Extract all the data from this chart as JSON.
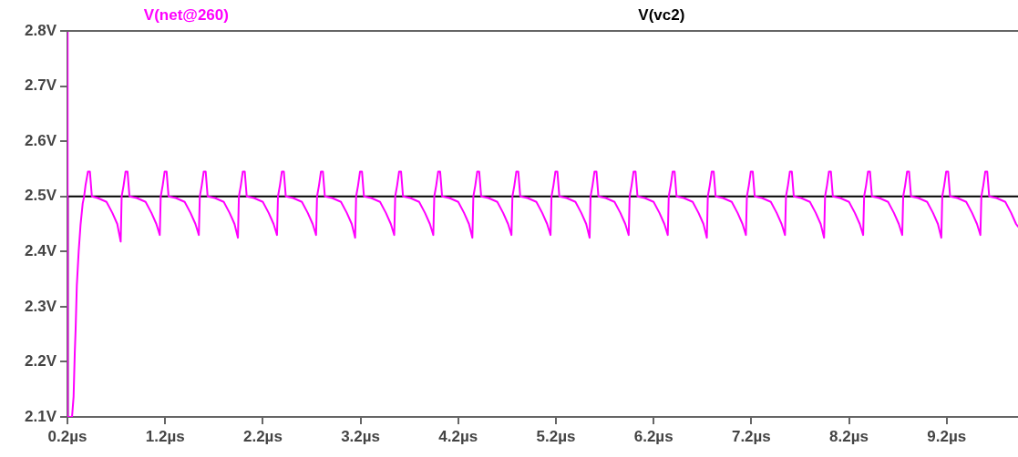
{
  "chart_data": {
    "type": "line",
    "legend": "top",
    "grid": false,
    "marker": "none",
    "line_style": "solid",
    "xlim": [
      0.2,
      9.93
    ],
    "ylim": [
      2.1,
      2.8
    ],
    "xticks": [
      {
        "value": 0.2,
        "label": "0.2µs"
      },
      {
        "value": 1.2,
        "label": "1.2µs"
      },
      {
        "value": 2.2,
        "label": "2.2µs"
      },
      {
        "value": 3.2,
        "label": "3.2µs"
      },
      {
        "value": 4.2,
        "label": "4.2µs"
      },
      {
        "value": 5.2,
        "label": "5.2µs"
      },
      {
        "value": 6.2,
        "label": "6.2µs"
      },
      {
        "value": 7.2,
        "label": "7.2µs"
      },
      {
        "value": 8.2,
        "label": "8.2µs"
      },
      {
        "value": 9.2,
        "label": "9.2µs"
      }
    ],
    "yticks": [
      {
        "value": 2.1,
        "label": "2.1V"
      },
      {
        "value": 2.2,
        "label": "2.2V"
      },
      {
        "value": 2.3,
        "label": "2.3V"
      },
      {
        "value": 2.4,
        "label": "2.4V"
      },
      {
        "value": 2.5,
        "label": "2.5V"
      },
      {
        "value": 2.6,
        "label": "2.6V"
      },
      {
        "value": 2.7,
        "label": "2.7V"
      },
      {
        "value": 2.8,
        "label": "2.8V"
      }
    ],
    "series": [
      {
        "name": "V(net@260)",
        "color": "#ff00ff",
        "x": [
          0.2,
          0.202,
          0.247,
          0.263,
          0.275,
          0.284,
          0.296,
          0.315,
          0.334,
          0.356,
          0.371,
          0.385,
          0.41,
          0.43,
          0.45,
          0.51,
          0.6,
          0.66,
          0.71,
          0.745,
          0.755,
          0.775,
          0.795,
          0.815,
          0.835,
          0.91,
          1.0,
          1.06,
          1.11,
          1.145,
          1.155,
          1.175,
          1.195,
          1.215,
          1.235,
          1.31,
          1.4,
          1.46,
          1.51,
          1.545,
          1.555,
          1.575,
          1.595,
          1.615,
          1.635,
          1.71,
          1.8,
          1.86,
          1.91,
          1.945,
          1.955,
          1.975,
          1.995,
          2.015,
          2.035,
          2.11,
          2.2,
          2.26,
          2.31,
          2.345,
          2.355,
          2.375,
          2.395,
          2.415,
          2.435,
          2.51,
          2.6,
          2.66,
          2.71,
          2.745,
          2.755,
          2.775,
          2.795,
          2.815,
          2.835,
          2.91,
          3.0,
          3.06,
          3.11,
          3.145,
          3.155,
          3.175,
          3.195,
          3.215,
          3.235,
          3.31,
          3.4,
          3.46,
          3.51,
          3.545,
          3.555,
          3.575,
          3.595,
          3.615,
          3.635,
          3.71,
          3.8,
          3.86,
          3.91,
          3.945,
          3.955,
          3.975,
          3.995,
          4.015,
          4.035,
          4.11,
          4.2,
          4.26,
          4.31,
          4.345,
          4.355,
          4.375,
          4.395,
          4.415,
          4.435,
          4.51,
          4.6,
          4.66,
          4.71,
          4.745,
          4.755,
          4.775,
          4.795,
          4.815,
          4.835,
          4.91,
          5.0,
          5.06,
          5.11,
          5.145,
          5.155,
          5.175,
          5.195,
          5.215,
          5.235,
          5.31,
          5.4,
          5.46,
          5.51,
          5.545,
          5.555,
          5.575,
          5.595,
          5.615,
          5.635,
          5.71,
          5.8,
          5.86,
          5.91,
          5.945,
          5.955,
          5.975,
          5.995,
          6.015,
          6.035,
          6.11,
          6.2,
          6.26,
          6.31,
          6.345,
          6.355,
          6.375,
          6.395,
          6.415,
          6.435,
          6.51,
          6.6,
          6.66,
          6.71,
          6.745,
          6.755,
          6.775,
          6.795,
          6.815,
          6.835,
          6.91,
          7.0,
          7.06,
          7.11,
          7.145,
          7.155,
          7.175,
          7.195,
          7.215,
          7.235,
          7.31,
          7.4,
          7.46,
          7.51,
          7.545,
          7.555,
          7.575,
          7.595,
          7.615,
          7.635,
          7.71,
          7.8,
          7.86,
          7.91,
          7.945,
          7.955,
          7.975,
          7.995,
          8.015,
          8.035,
          8.11,
          8.2,
          8.26,
          8.31,
          8.345,
          8.355,
          8.375,
          8.395,
          8.415,
          8.435,
          8.51,
          8.6,
          8.66,
          8.71,
          8.745,
          8.755,
          8.775,
          8.795,
          8.815,
          8.835,
          8.91,
          9.0,
          9.06,
          9.11,
          9.145,
          9.155,
          9.175,
          9.195,
          9.215,
          9.235,
          9.31,
          9.4,
          9.46,
          9.51,
          9.545,
          9.555,
          9.575,
          9.595,
          9.615,
          9.635,
          9.71,
          9.8,
          9.86,
          9.91,
          9.93
        ],
        "values": [
          2.8,
          2.1,
          2.1,
          2.137,
          2.216,
          2.26,
          2.338,
          2.4,
          2.448,
          2.487,
          2.5,
          2.52,
          2.545,
          2.545,
          2.5,
          2.497,
          2.49,
          2.47,
          2.45,
          2.418,
          2.5,
          2.52,
          2.545,
          2.545,
          2.5,
          2.497,
          2.49,
          2.47,
          2.45,
          2.43,
          2.5,
          2.52,
          2.545,
          2.545,
          2.5,
          2.497,
          2.49,
          2.47,
          2.45,
          2.43,
          2.5,
          2.52,
          2.545,
          2.545,
          2.5,
          2.497,
          2.49,
          2.47,
          2.45,
          2.425,
          2.5,
          2.52,
          2.545,
          2.545,
          2.5,
          2.497,
          2.49,
          2.47,
          2.45,
          2.43,
          2.5,
          2.52,
          2.545,
          2.545,
          2.5,
          2.497,
          2.49,
          2.47,
          2.45,
          2.43,
          2.5,
          2.52,
          2.545,
          2.545,
          2.5,
          2.497,
          2.49,
          2.47,
          2.45,
          2.425,
          2.5,
          2.52,
          2.545,
          2.545,
          2.5,
          2.497,
          2.49,
          2.47,
          2.45,
          2.43,
          2.5,
          2.52,
          2.545,
          2.545,
          2.5,
          2.497,
          2.49,
          2.47,
          2.45,
          2.43,
          2.5,
          2.52,
          2.545,
          2.545,
          2.5,
          2.497,
          2.49,
          2.47,
          2.45,
          2.425,
          2.5,
          2.52,
          2.545,
          2.545,
          2.5,
          2.497,
          2.49,
          2.47,
          2.45,
          2.43,
          2.5,
          2.52,
          2.545,
          2.545,
          2.5,
          2.497,
          2.49,
          2.47,
          2.45,
          2.43,
          2.5,
          2.52,
          2.545,
          2.545,
          2.5,
          2.497,
          2.49,
          2.47,
          2.45,
          2.425,
          2.5,
          2.52,
          2.545,
          2.545,
          2.5,
          2.497,
          2.49,
          2.47,
          2.45,
          2.43,
          2.5,
          2.52,
          2.545,
          2.545,
          2.5,
          2.497,
          2.49,
          2.47,
          2.45,
          2.43,
          2.5,
          2.52,
          2.545,
          2.545,
          2.5,
          2.497,
          2.49,
          2.47,
          2.45,
          2.425,
          2.5,
          2.52,
          2.545,
          2.545,
          2.5,
          2.497,
          2.49,
          2.47,
          2.45,
          2.43,
          2.5,
          2.52,
          2.545,
          2.545,
          2.5,
          2.497,
          2.49,
          2.47,
          2.45,
          2.43,
          2.5,
          2.52,
          2.545,
          2.545,
          2.5,
          2.497,
          2.49,
          2.47,
          2.45,
          2.425,
          2.5,
          2.52,
          2.545,
          2.545,
          2.5,
          2.497,
          2.49,
          2.47,
          2.45,
          2.43,
          2.5,
          2.52,
          2.545,
          2.545,
          2.5,
          2.497,
          2.49,
          2.47,
          2.45,
          2.43,
          2.5,
          2.52,
          2.545,
          2.545,
          2.5,
          2.497,
          2.49,
          2.47,
          2.45,
          2.425,
          2.5,
          2.52,
          2.545,
          2.545,
          2.5,
          2.497,
          2.49,
          2.47,
          2.45,
          2.43,
          2.5,
          2.52,
          2.545,
          2.545,
          2.5,
          2.497,
          2.49,
          2.47,
          2.45,
          2.445
        ]
      },
      {
        "name": "V(vc2)",
        "color": "#000000",
        "x": [
          0.2,
          0.203,
          0.203,
          0.204,
          9.93
        ],
        "values": [
          2.1,
          2.1,
          2.175,
          2.5,
          2.5
        ]
      }
    ]
  }
}
